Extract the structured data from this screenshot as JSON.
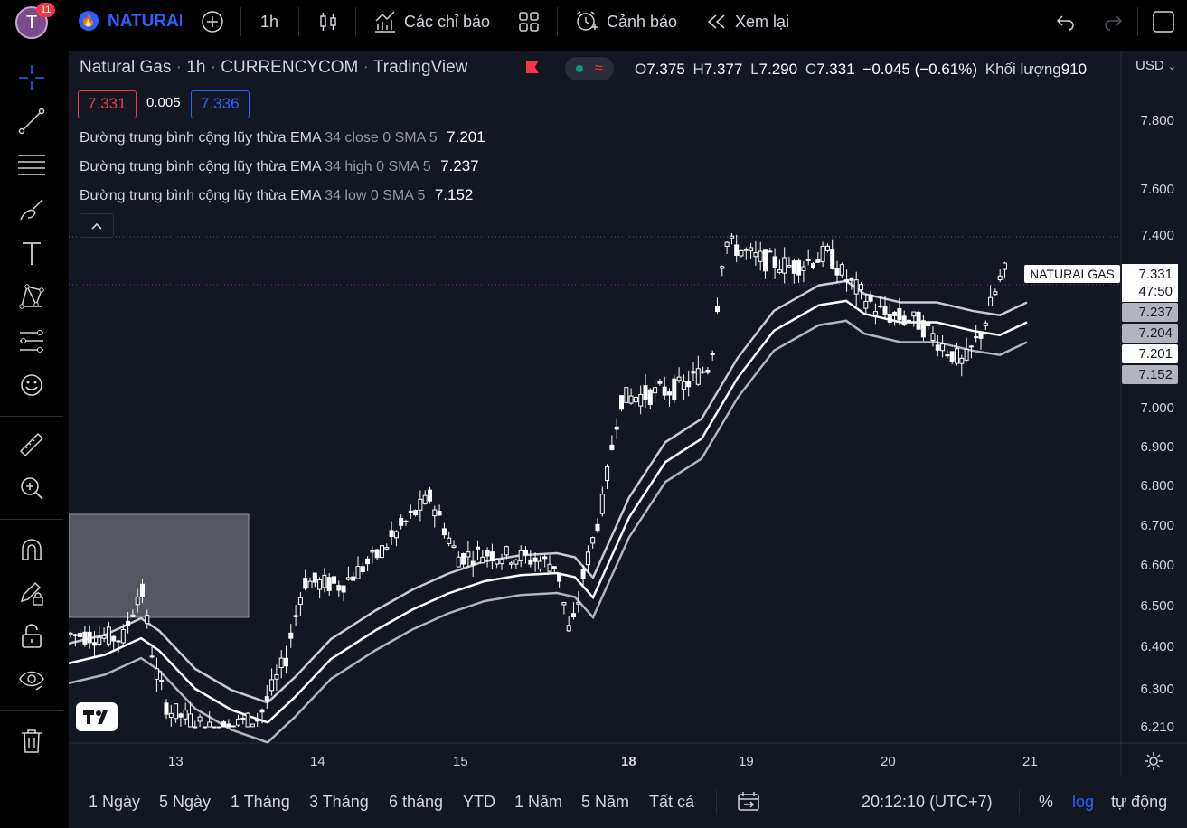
{
  "topbar": {
    "avatar_letter": "T",
    "notif_count": "11",
    "symbol": "NATURAL",
    "interval": "1h",
    "indicators_label": "Các chỉ báo",
    "alert_label": "Cảnh báo",
    "replay_label": "Xem lại"
  },
  "legend": {
    "title": "Natural Gas",
    "interval": "1h",
    "exchange": "CURRENCYCOM",
    "source": "TradingView",
    "o_label": "O",
    "o_value": "7.375",
    "h_label": "H",
    "h_value": "7.377",
    "l_label": "L",
    "l_value": "7.290",
    "c_label": "C",
    "c_value": "7.331",
    "change": "−0.045 (−0.61%)",
    "volume_label": "Khối lượng",
    "volume_value": "910",
    "bid": "7.331",
    "spread": "0.005",
    "ask": "7.336"
  },
  "indicators": [
    {
      "name": "Đường trung bình cộng lũy thừa EMA",
      "params": "34 close 0 SMA 5",
      "value": "7.201"
    },
    {
      "name": "Đường trung bình cộng lũy thừa EMA",
      "params": "34 high 0 SMA 5",
      "value": "7.237"
    },
    {
      "name": "Đường trung bình cộng lũy thừa EMA",
      "params": "34 low 0 SMA 5",
      "value": "7.152"
    }
  ],
  "price_axis": {
    "currency": "USD",
    "labels": [
      "7.800",
      "7.600",
      "7.400",
      "7.000",
      "6.900",
      "6.800",
      "6.700",
      "6.600",
      "6.500",
      "6.400",
      "6.300",
      "6.210"
    ]
  },
  "tags": {
    "symbol_tag": "NATURALGAS",
    "last_price": "7.331",
    "countdown": "47:50",
    "ema_high": "7.237",
    "ema_mid": "7.204",
    "ema_close": "7.201",
    "ema_low": "7.152"
  },
  "time_axis": [
    "13",
    "14",
    "15",
    "18",
    "19",
    "20",
    "21"
  ],
  "bottombar": {
    "ranges": [
      "1 Ngày",
      "5 Ngày",
      "1 Tháng",
      "3 Tháng",
      "6 tháng",
      "YTD",
      "1 Năm",
      "5 Năm",
      "Tất cả"
    ],
    "clock": "20:12:10 (UTC+7)",
    "percent": "%",
    "log": "log",
    "auto": "tự động"
  },
  "colors": {
    "accent": "#2962ff",
    "red": "#f23645",
    "chart_bg": "#131722"
  }
}
